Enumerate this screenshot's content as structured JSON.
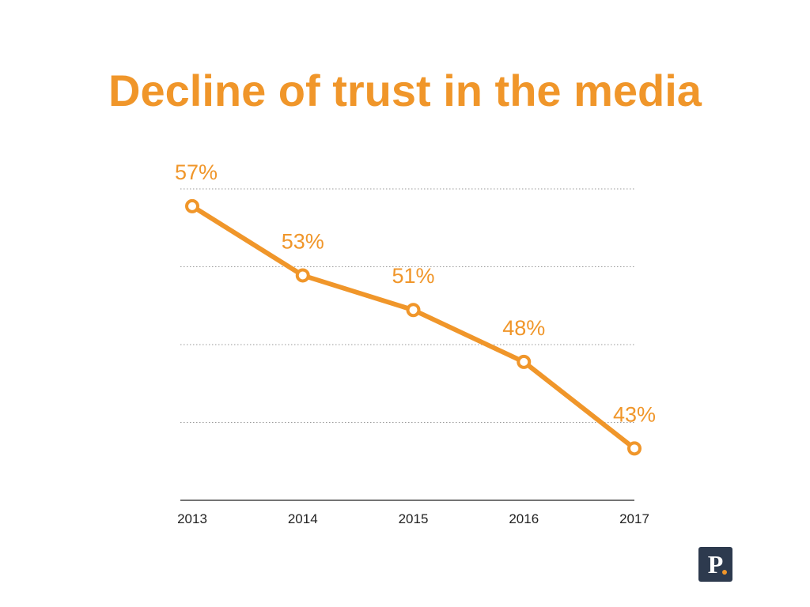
{
  "title": "Decline of trust in the media",
  "colors": {
    "accent": "#f0962a",
    "logo_background": "#2d3a4e",
    "grid": "#9a9a9a",
    "axis": "#222222",
    "tick_text": "#222222"
  },
  "logo": {
    "letter": "P",
    "icon": "publication-logo-icon"
  },
  "chart_data": {
    "type": "line",
    "x": [
      "2013",
      "2014",
      "2015",
      "2016",
      "2017"
    ],
    "series": [
      {
        "values": [
          57,
          53,
          51,
          48,
          43
        ],
        "labels": [
          "57%",
          "53%",
          "51%",
          "48%",
          "43%"
        ]
      }
    ],
    "ylim": [
      40,
      58
    ],
    "grid": true,
    "xlabel": "",
    "ylabel": ""
  }
}
